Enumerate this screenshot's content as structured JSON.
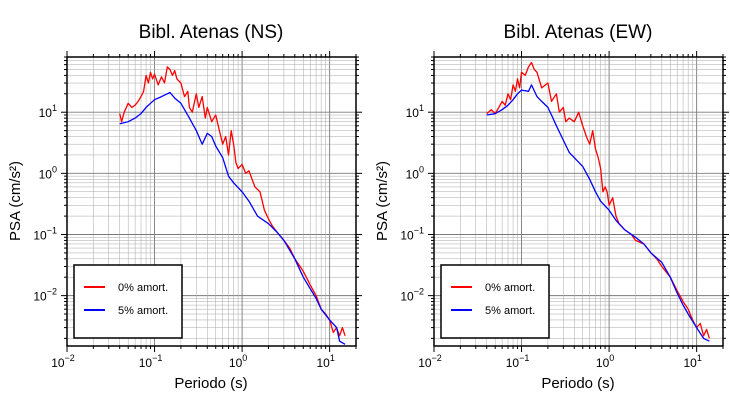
{
  "chart_data": [
    {
      "type": "line",
      "title": "Bibl. Atenas (NS)",
      "xlabel": "Periodo (s)",
      "ylabel": "PSA (cm/s²)",
      "x_scale": "log",
      "y_scale": "log",
      "xlim": [
        0.01,
        20
      ],
      "ylim": [
        0.0015,
        80
      ],
      "x_ticks": [
        {
          "v": 0.01,
          "base": "10",
          "exp": "−2"
        },
        {
          "v": 0.1,
          "base": "10",
          "exp": "−1"
        },
        {
          "v": 1,
          "base": "10",
          "exp": "0"
        },
        {
          "v": 10,
          "base": "10",
          "exp": "1"
        }
      ],
      "y_ticks": [
        {
          "v": 0.01,
          "base": "10",
          "exp": "−2"
        },
        {
          "v": 0.1,
          "base": "10",
          "exp": "−1"
        },
        {
          "v": 1,
          "base": "10",
          "exp": "0"
        },
        {
          "v": 10,
          "base": "10",
          "exp": "1"
        }
      ],
      "grid": true,
      "legend_position": "bottom-left",
      "series": [
        {
          "name": "0% amort.",
          "color": "#ff0000",
          "points": [
            [
              0.04,
              9.5
            ],
            [
              0.042,
              7
            ],
            [
              0.045,
              10
            ],
            [
              0.05,
              14
            ],
            [
              0.055,
              12
            ],
            [
              0.06,
              13
            ],
            [
              0.065,
              15
            ],
            [
              0.07,
              18
            ],
            [
              0.075,
              22
            ],
            [
              0.08,
              40
            ],
            [
              0.085,
              30
            ],
            [
              0.09,
              45
            ],
            [
              0.095,
              35
            ],
            [
              0.1,
              42
            ],
            [
              0.11,
              28
            ],
            [
              0.12,
              38
            ],
            [
              0.13,
              30
            ],
            [
              0.14,
              55
            ],
            [
              0.15,
              50
            ],
            [
              0.16,
              40
            ],
            [
              0.17,
              48
            ],
            [
              0.18,
              35
            ],
            [
              0.2,
              30
            ],
            [
              0.22,
              18
            ],
            [
              0.24,
              22
            ],
            [
              0.25,
              12
            ],
            [
              0.27,
              10
            ],
            [
              0.3,
              20
            ],
            [
              0.32,
              12
            ],
            [
              0.35,
              18
            ],
            [
              0.38,
              8
            ],
            [
              0.4,
              12
            ],
            [
              0.45,
              7
            ],
            [
              0.5,
              9
            ],
            [
              0.55,
              5
            ],
            [
              0.6,
              3
            ],
            [
              0.65,
              4
            ],
            [
              0.7,
              2
            ],
            [
              0.75,
              5
            ],
            [
              0.8,
              3
            ],
            [
              0.85,
              1.5
            ],
            [
              0.9,
              1.2
            ],
            [
              1.0,
              1.4
            ],
            [
              1.1,
              1.0
            ],
            [
              1.2,
              1.1
            ],
            [
              1.3,
              0.8
            ],
            [
              1.4,
              0.6
            ],
            [
              1.6,
              0.5
            ],
            [
              1.8,
              0.25
            ],
            [
              2.0,
              0.18
            ],
            [
              2.2,
              0.14
            ],
            [
              2.5,
              0.11
            ],
            [
              3.0,
              0.08
            ],
            [
              3.5,
              0.06
            ],
            [
              4.0,
              0.04
            ],
            [
              5.0,
              0.025
            ],
            [
              6.0,
              0.015
            ],
            [
              7.0,
              0.01
            ],
            [
              8.0,
              0.006
            ],
            [
              9.0,
              0.005
            ],
            [
              10.0,
              0.004
            ],
            [
              11.0,
              0.0025
            ],
            [
              12.0,
              0.003
            ],
            [
              13.0,
              0.0022
            ],
            [
              14.0,
              0.003
            ],
            [
              15.0,
              0.0022
            ]
          ]
        },
        {
          "name": "5% amort.",
          "color": "#0000ff",
          "points": [
            [
              0.04,
              6.5
            ],
            [
              0.05,
              7.0
            ],
            [
              0.06,
              8.0
            ],
            [
              0.07,
              9.5
            ],
            [
              0.08,
              12
            ],
            [
              0.09,
              14
            ],
            [
              0.1,
              16
            ],
            [
              0.12,
              18
            ],
            [
              0.14,
              20
            ],
            [
              0.15,
              21
            ],
            [
              0.17,
              17
            ],
            [
              0.2,
              14
            ],
            [
              0.25,
              8
            ],
            [
              0.3,
              5
            ],
            [
              0.35,
              3
            ],
            [
              0.4,
              4.5
            ],
            [
              0.45,
              4
            ],
            [
              0.5,
              2.8
            ],
            [
              0.6,
              1.8
            ],
            [
              0.7,
              0.9
            ],
            [
              0.8,
              0.7
            ],
            [
              1.0,
              0.5
            ],
            [
              1.2,
              0.35
            ],
            [
              1.5,
              0.2
            ],
            [
              2.0,
              0.15
            ],
            [
              2.5,
              0.11
            ],
            [
              3.0,
              0.08
            ],
            [
              4.0,
              0.04
            ],
            [
              5.0,
              0.02
            ],
            [
              6.0,
              0.013
            ],
            [
              7.0,
              0.009
            ],
            [
              8.0,
              0.006
            ],
            [
              10.0,
              0.004
            ],
            [
              12.0,
              0.003
            ],
            [
              13.0,
              0.0018
            ],
            [
              15.0,
              0.0016
            ]
          ]
        }
      ]
    },
    {
      "type": "line",
      "title": "Bibl. Atenas (EW)",
      "xlabel": "Periodo (s)",
      "ylabel": "PSA (cm/s²)",
      "x_scale": "log",
      "y_scale": "log",
      "xlim": [
        0.01,
        20
      ],
      "ylim": [
        0.0015,
        80
      ],
      "x_ticks": [
        {
          "v": 0.01,
          "base": "10",
          "exp": "−2"
        },
        {
          "v": 0.1,
          "base": "10",
          "exp": "−1"
        },
        {
          "v": 1,
          "base": "10",
          "exp": "0"
        },
        {
          "v": 10,
          "base": "10",
          "exp": "1"
        }
      ],
      "y_ticks": [
        {
          "v": 0.01,
          "base": "10",
          "exp": "−2"
        },
        {
          "v": 0.1,
          "base": "10",
          "exp": "−1"
        },
        {
          "v": 1,
          "base": "10",
          "exp": "0"
        },
        {
          "v": 10,
          "base": "10",
          "exp": "1"
        }
      ],
      "grid": true,
      "legend_position": "bottom-left",
      "series": [
        {
          "name": "0% amort.",
          "color": "#ff0000",
          "points": [
            [
              0.04,
              9.5
            ],
            [
              0.045,
              11
            ],
            [
              0.05,
              9.5
            ],
            [
              0.055,
              12
            ],
            [
              0.06,
              15
            ],
            [
              0.065,
              13
            ],
            [
              0.07,
              20
            ],
            [
              0.075,
              16
            ],
            [
              0.08,
              28
            ],
            [
              0.085,
              22
            ],
            [
              0.09,
              35
            ],
            [
              0.095,
              25
            ],
            [
              0.1,
              45
            ],
            [
              0.11,
              40
            ],
            [
              0.12,
              55
            ],
            [
              0.13,
              65
            ],
            [
              0.14,
              50
            ],
            [
              0.15,
              45
            ],
            [
              0.17,
              25
            ],
            [
              0.2,
              30
            ],
            [
              0.22,
              15
            ],
            [
              0.25,
              20
            ],
            [
              0.27,
              10
            ],
            [
              0.3,
              12
            ],
            [
              0.32,
              7
            ],
            [
              0.35,
              8
            ],
            [
              0.4,
              7
            ],
            [
              0.45,
              10
            ],
            [
              0.5,
              6
            ],
            [
              0.55,
              4
            ],
            [
              0.6,
              3
            ],
            [
              0.65,
              5
            ],
            [
              0.7,
              2.5
            ],
            [
              0.75,
              1.8
            ],
            [
              0.8,
              1.2
            ],
            [
              0.85,
              0.5
            ],
            [
              0.9,
              0.6
            ],
            [
              0.95,
              0.5
            ],
            [
              1.0,
              0.3
            ],
            [
              1.1,
              0.4
            ],
            [
              1.2,
              0.2
            ],
            [
              1.3,
              0.15
            ],
            [
              1.5,
              0.12
            ],
            [
              1.8,
              0.1
            ],
            [
              2.0,
              0.08
            ],
            [
              2.5,
              0.07
            ],
            [
              3.0,
              0.05
            ],
            [
              3.5,
              0.04
            ],
            [
              4.0,
              0.03
            ],
            [
              5.0,
              0.02
            ],
            [
              6.0,
              0.012
            ],
            [
              7.0,
              0.008
            ],
            [
              8.0,
              0.006
            ],
            [
              9.0,
              0.004
            ],
            [
              10.0,
              0.003
            ],
            [
              11.0,
              0.0035
            ],
            [
              12.0,
              0.0022
            ],
            [
              13.0,
              0.0028
            ],
            [
              14.0,
              0.002
            ]
          ]
        },
        {
          "name": "5% amort.",
          "color": "#0000ff",
          "points": [
            [
              0.04,
              9
            ],
            [
              0.05,
              9.5
            ],
            [
              0.06,
              11
            ],
            [
              0.07,
              13
            ],
            [
              0.08,
              16
            ],
            [
              0.09,
              20
            ],
            [
              0.1,
              23
            ],
            [
              0.12,
              22
            ],
            [
              0.13,
              28
            ],
            [
              0.15,
              18
            ],
            [
              0.17,
              15
            ],
            [
              0.2,
              12
            ],
            [
              0.22,
              9
            ],
            [
              0.25,
              6
            ],
            [
              0.3,
              3.5
            ],
            [
              0.35,
              2.2
            ],
            [
              0.4,
              1.8
            ],
            [
              0.5,
              1.3
            ],
            [
              0.6,
              0.8
            ],
            [
              0.7,
              0.5
            ],
            [
              0.8,
              0.35
            ],
            [
              1.0,
              0.25
            ],
            [
              1.2,
              0.17
            ],
            [
              1.5,
              0.12
            ],
            [
              2.0,
              0.09
            ],
            [
              2.5,
              0.07
            ],
            [
              3.0,
              0.05
            ],
            [
              4.0,
              0.035
            ],
            [
              5.0,
              0.02
            ],
            [
              6.0,
              0.011
            ],
            [
              7.0,
              0.007
            ],
            [
              8.0,
              0.005
            ],
            [
              10.0,
              0.003
            ],
            [
              12.0,
              0.002
            ],
            [
              14.0,
              0.0018
            ]
          ]
        }
      ]
    }
  ]
}
